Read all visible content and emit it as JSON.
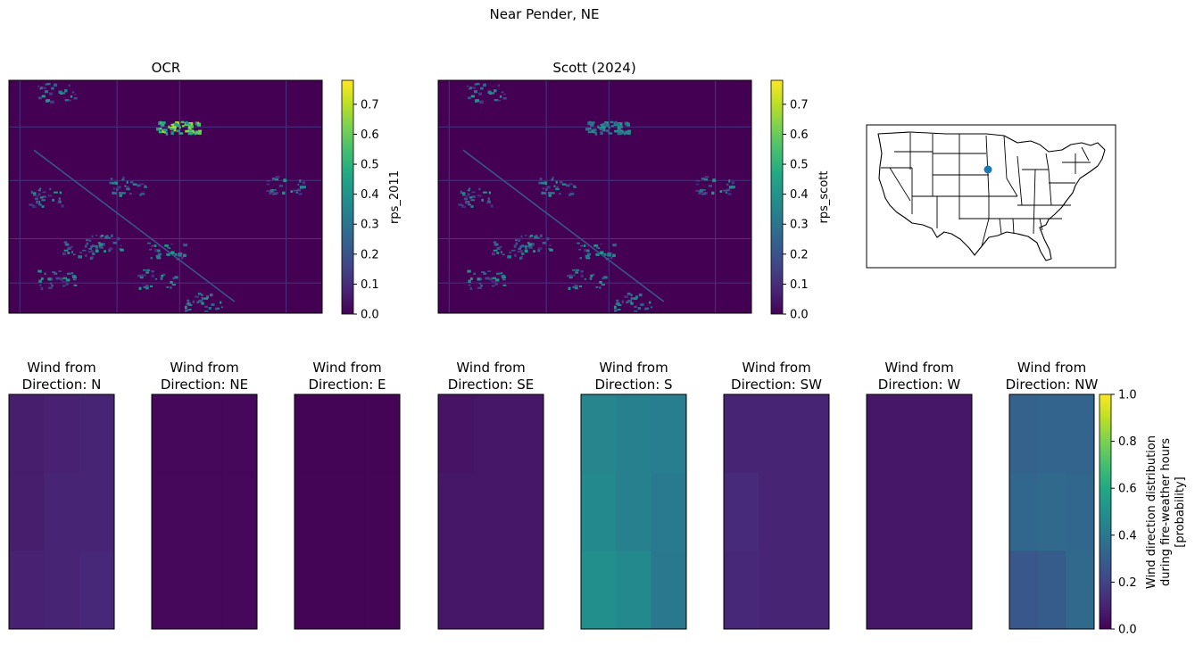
{
  "figure": {
    "suptitle": "Near Pender, NE"
  },
  "chart_data": [
    {
      "type": "heatmap",
      "title": "OCR",
      "colorbar_label": "rps_2011",
      "colorbar_ticks": [
        "0.0",
        "0.1",
        "0.2",
        "0.3",
        "0.4",
        "0.5",
        "0.6",
        "0.7"
      ],
      "vmin": 0,
      "vmax": 0.78,
      "colormap": "viridis",
      "dominant_value": 0.0,
      "hotspot_value": 0.75
    },
    {
      "type": "heatmap",
      "title": "Scott (2024)",
      "colorbar_label": "rps_scott",
      "colorbar_ticks": [
        "0.0",
        "0.1",
        "0.2",
        "0.3",
        "0.4",
        "0.5",
        "0.6",
        "0.7"
      ],
      "vmin": 0,
      "vmax": 0.78,
      "colormap": "viridis",
      "dominant_value": 0.0,
      "hotspot_value": 0.45
    },
    {
      "type": "map",
      "description_level": "US states outline with location marker",
      "marker_color": "#1f77b4"
    },
    {
      "type": "heatmap",
      "shared_colorbar": {
        "label_lines": [
          "Wind direction distribution",
          "during fire-weather hours",
          "[probability]"
        ],
        "ticks": [
          "0.0",
          "0.2",
          "0.4",
          "0.6",
          "0.8",
          "1.0"
        ],
        "vmin": 0,
        "vmax": 1
      },
      "panels": [
        {
          "title_line1": "Wind from",
          "title_line2": "Direction: N",
          "values": [
            [
              0.08,
              0.09,
              0.1
            ],
            [
              0.08,
              0.1,
              0.1
            ],
            [
              0.09,
              0.1,
              0.11
            ]
          ]
        },
        {
          "title_line1": "Wind from",
          "title_line2": "Direction: NE",
          "values": [
            [
              0.02,
              0.02,
              0.02
            ],
            [
              0.02,
              0.02,
              0.02
            ],
            [
              0.02,
              0.02,
              0.02
            ]
          ]
        },
        {
          "title_line1": "Wind from",
          "title_line2": "Direction: E",
          "values": [
            [
              0.01,
              0.01,
              0.01
            ],
            [
              0.01,
              0.01,
              0.01
            ],
            [
              0.01,
              0.01,
              0.01
            ]
          ]
        },
        {
          "title_line1": "Wind from",
          "title_line2": "Direction: SE",
          "values": [
            [
              0.05,
              0.06,
              0.06
            ],
            [
              0.06,
              0.06,
              0.06
            ],
            [
              0.06,
              0.06,
              0.06
            ]
          ]
        },
        {
          "title_line1": "Wind from",
          "title_line2": "Direction: S",
          "values": [
            [
              0.45,
              0.43,
              0.42
            ],
            [
              0.47,
              0.43,
              0.41
            ],
            [
              0.49,
              0.47,
              0.4
            ]
          ]
        },
        {
          "title_line1": "Wind from",
          "title_line2": "Direction: SW",
          "values": [
            [
              0.1,
              0.1,
              0.1
            ],
            [
              0.12,
              0.1,
              0.1
            ],
            [
              0.11,
              0.1,
              0.1
            ]
          ]
        },
        {
          "title_line1": "Wind from",
          "title_line2": "Direction: W",
          "values": [
            [
              0.06,
              0.06,
              0.06
            ],
            [
              0.06,
              0.06,
              0.06
            ],
            [
              0.06,
              0.06,
              0.06
            ]
          ]
        },
        {
          "title_line1": "Wind from",
          "title_line2": "Direction: NW",
          "values": [
            [
              0.31,
              0.32,
              0.32
            ],
            [
              0.33,
              0.34,
              0.33
            ],
            [
              0.27,
              0.29,
              0.34
            ]
          ]
        }
      ]
    }
  ]
}
